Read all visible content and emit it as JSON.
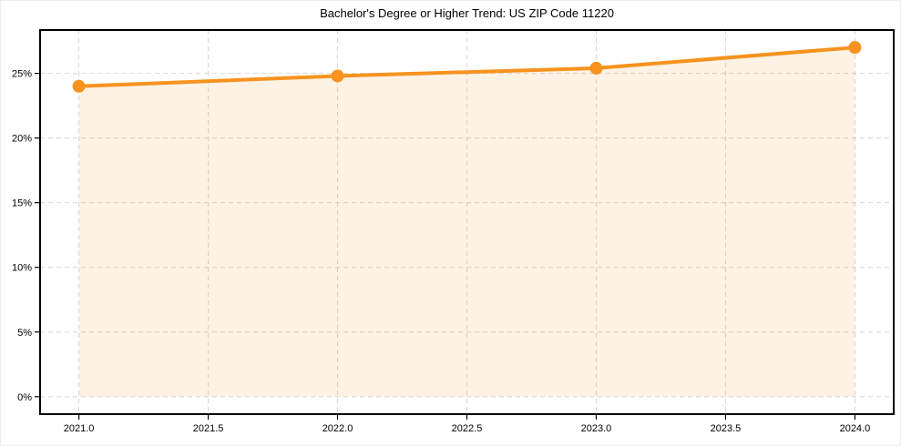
{
  "chart_data": {
    "type": "line",
    "title": "Bachelor's Degree or Higher Trend: US ZIP Code 11220",
    "x": [
      2021,
      2022,
      2023,
      2024
    ],
    "values": [
      24.0,
      24.8,
      25.4,
      27.0
    ],
    "xlabel": "",
    "ylabel": "",
    "xlim": [
      2020.85,
      2024.15
    ],
    "ylim": [
      -1.35,
      28.35
    ],
    "xticks": {
      "values": [
        2021.0,
        2021.5,
        2022.0,
        2022.5,
        2023.0,
        2023.5,
        2024.0
      ],
      "labels": [
        "2021.0",
        "2021.5",
        "2022.0",
        "2022.5",
        "2023.0",
        "2023.5",
        "2024.0"
      ]
    },
    "yticks": {
      "values": [
        0,
        5,
        10,
        15,
        20,
        25
      ],
      "labels": [
        "0%",
        "5%",
        "10%",
        "15%",
        "20%",
        "25%"
      ]
    },
    "grid": true,
    "grid_style": "dashed",
    "legend": "none",
    "area_fill": true,
    "fill_baseline": 0,
    "marker": "circle",
    "colors": {
      "line": "#f7931e",
      "fill": "#f7931e",
      "fill_opacity": 0.12,
      "grid": "#d5d5d5",
      "spine": "#000000",
      "text": "#000000"
    }
  }
}
